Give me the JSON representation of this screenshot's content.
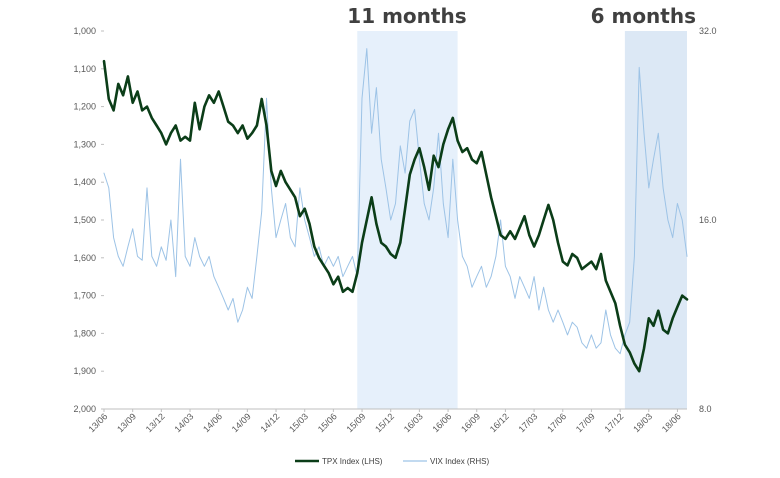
{
  "chart_data": {
    "type": "line",
    "x_tick_labels": [
      "13/06",
      "13/09",
      "13/12",
      "14/03",
      "14/06",
      "14/09",
      "14/12",
      "15/03",
      "15/06",
      "15/09",
      "15/12",
      "16/03",
      "16/06",
      "16/09",
      "16/12",
      "17/03",
      "17/06",
      "17/09",
      "17/12",
      "18/03",
      "18/06"
    ],
    "y_left": {
      "inverted": true,
      "ylim": [
        1000,
        2000
      ],
      "tick_labels": [
        "1,000",
        "1,100",
        "1,200",
        "1,300",
        "1,400",
        "1,500",
        "1,600",
        "1,700",
        "1,800",
        "1,900",
        "2,000"
      ]
    },
    "y_right": {
      "scale": "log",
      "ylim": [
        8,
        32
      ],
      "tick_labels": [
        "32.0",
        "16.0",
        "8.0"
      ]
    },
    "shaded_periods": [
      {
        "label": "11 months",
        "start_month": 26.5,
        "end_month": 37.0
      },
      {
        "label": "6 months",
        "start_month": 54.5,
        "end_month": 61.0
      }
    ],
    "series": [
      {
        "name": "TPX Index  (LHS)",
        "axis": "left",
        "color": "#0b3d18",
        "points": [
          [
            0.0,
            1080
          ],
          [
            0.5,
            1180
          ],
          [
            1.0,
            1210
          ],
          [
            1.5,
            1140
          ],
          [
            2.0,
            1170
          ],
          [
            2.5,
            1120
          ],
          [
            3.0,
            1190
          ],
          [
            3.5,
            1160
          ],
          [
            4.0,
            1210
          ],
          [
            4.5,
            1200
          ],
          [
            5.0,
            1230
          ],
          [
            5.5,
            1250
          ],
          [
            6.0,
            1270
          ],
          [
            6.5,
            1300
          ],
          [
            7.0,
            1270
          ],
          [
            7.5,
            1250
          ],
          [
            8.0,
            1290
          ],
          [
            8.5,
            1280
          ],
          [
            9.0,
            1290
          ],
          [
            9.5,
            1190
          ],
          [
            10.0,
            1260
          ],
          [
            10.5,
            1200
          ],
          [
            11.0,
            1170
          ],
          [
            11.5,
            1190
          ],
          [
            12.0,
            1160
          ],
          [
            12.5,
            1200
          ],
          [
            13.0,
            1240
          ],
          [
            13.5,
            1250
          ],
          [
            14.0,
            1270
          ],
          [
            14.5,
            1250
          ],
          [
            15.0,
            1285
          ],
          [
            15.5,
            1270
          ],
          [
            16.0,
            1250
          ],
          [
            16.5,
            1180
          ],
          [
            17.0,
            1250
          ],
          [
            17.5,
            1370
          ],
          [
            18.0,
            1410
          ],
          [
            18.5,
            1370
          ],
          [
            19.0,
            1400
          ],
          [
            19.5,
            1420
          ],
          [
            20.0,
            1440
          ],
          [
            20.5,
            1490
          ],
          [
            21.0,
            1470
          ],
          [
            21.5,
            1510
          ],
          [
            22.0,
            1570
          ],
          [
            22.5,
            1600
          ],
          [
            23.0,
            1620
          ],
          [
            23.5,
            1640
          ],
          [
            24.0,
            1670
          ],
          [
            24.5,
            1650
          ],
          [
            25.0,
            1690
          ],
          [
            25.5,
            1680
          ],
          [
            26.0,
            1690
          ],
          [
            26.5,
            1640
          ],
          [
            27.0,
            1560
          ],
          [
            27.5,
            1500
          ],
          [
            28.0,
            1440
          ],
          [
            28.5,
            1510
          ],
          [
            29.0,
            1560
          ],
          [
            29.5,
            1570
          ],
          [
            30.0,
            1590
          ],
          [
            30.5,
            1600
          ],
          [
            31.0,
            1560
          ],
          [
            31.5,
            1470
          ],
          [
            32.0,
            1380
          ],
          [
            32.5,
            1340
          ],
          [
            33.0,
            1310
          ],
          [
            33.5,
            1360
          ],
          [
            34.0,
            1420
          ],
          [
            34.5,
            1330
          ],
          [
            35.0,
            1360
          ],
          [
            35.5,
            1300
          ],
          [
            36.0,
            1260
          ],
          [
            36.5,
            1230
          ],
          [
            37.0,
            1290
          ],
          [
            37.5,
            1320
          ],
          [
            38.0,
            1310
          ],
          [
            38.5,
            1340
          ],
          [
            39.0,
            1350
          ],
          [
            39.5,
            1320
          ],
          [
            40.0,
            1380
          ],
          [
            40.5,
            1440
          ],
          [
            41.0,
            1490
          ],
          [
            41.5,
            1540
          ],
          [
            42.0,
            1550
          ],
          [
            42.5,
            1530
          ],
          [
            43.0,
            1550
          ],
          [
            43.5,
            1520
          ],
          [
            44.0,
            1490
          ],
          [
            44.5,
            1540
          ],
          [
            45.0,
            1570
          ],
          [
            45.5,
            1540
          ],
          [
            46.0,
            1500
          ],
          [
            46.5,
            1460
          ],
          [
            47.0,
            1500
          ],
          [
            47.5,
            1560
          ],
          [
            48.0,
            1610
          ],
          [
            48.5,
            1620
          ],
          [
            49.0,
            1590
          ],
          [
            49.5,
            1600
          ],
          [
            50.0,
            1630
          ],
          [
            50.5,
            1620
          ],
          [
            51.0,
            1610
          ],
          [
            51.5,
            1630
          ],
          [
            52.0,
            1590
          ],
          [
            52.5,
            1660
          ],
          [
            53.0,
            1690
          ],
          [
            53.5,
            1720
          ],
          [
            54.0,
            1780
          ],
          [
            54.5,
            1830
          ],
          [
            55.0,
            1850
          ],
          [
            55.5,
            1880
          ],
          [
            56.0,
            1900
          ],
          [
            56.5,
            1840
          ],
          [
            57.0,
            1760
          ],
          [
            57.5,
            1780
          ],
          [
            58.0,
            1740
          ],
          [
            58.5,
            1790
          ],
          [
            59.0,
            1800
          ],
          [
            59.5,
            1760
          ],
          [
            60.0,
            1730
          ],
          [
            60.5,
            1700
          ],
          [
            61.0,
            1710
          ]
        ]
      },
      {
        "name": "VIX Index  (RHS)",
        "axis": "right",
        "color": "#9dc3e6",
        "points": [
          [
            0.0,
            19.0
          ],
          [
            0.5,
            18.0
          ],
          [
            1.0,
            15.0
          ],
          [
            1.5,
            14.0
          ],
          [
            2.0,
            13.5
          ],
          [
            2.5,
            14.5
          ],
          [
            3.0,
            15.5
          ],
          [
            3.5,
            14.0
          ],
          [
            4.0,
            13.8
          ],
          [
            4.5,
            18.0
          ],
          [
            5.0,
            14.0
          ],
          [
            5.5,
            13.5
          ],
          [
            6.0,
            14.5
          ],
          [
            6.5,
            13.8
          ],
          [
            7.0,
            16.0
          ],
          [
            7.5,
            13.0
          ],
          [
            8.0,
            20.0
          ],
          [
            8.5,
            14.0
          ],
          [
            9.0,
            13.5
          ],
          [
            9.5,
            15.0
          ],
          [
            10.0,
            14.0
          ],
          [
            10.5,
            13.5
          ],
          [
            11.0,
            14.0
          ],
          [
            11.5,
            13.0
          ],
          [
            12.0,
            12.5
          ],
          [
            12.5,
            12.0
          ],
          [
            13.0,
            11.5
          ],
          [
            13.5,
            12.0
          ],
          [
            14.0,
            11.0
          ],
          [
            14.5,
            11.5
          ],
          [
            15.0,
            12.5
          ],
          [
            15.5,
            12.0
          ],
          [
            16.0,
            14.0
          ],
          [
            16.5,
            16.5
          ],
          [
            17.0,
            25.0
          ],
          [
            17.5,
            18.0
          ],
          [
            18.0,
            15.0
          ],
          [
            18.5,
            16.0
          ],
          [
            19.0,
            17.0
          ],
          [
            19.5,
            15.0
          ],
          [
            20.0,
            14.5
          ],
          [
            20.5,
            18.0
          ],
          [
            21.0,
            16.0
          ],
          [
            21.5,
            15.0
          ],
          [
            22.0,
            14.0
          ],
          [
            22.5,
            14.5
          ],
          [
            23.0,
            13.5
          ],
          [
            23.5,
            14.0
          ],
          [
            24.0,
            13.5
          ],
          [
            24.5,
            14.0
          ],
          [
            25.0,
            13.0
          ],
          [
            25.5,
            13.5
          ],
          [
            26.0,
            14.0
          ],
          [
            26.5,
            13.0
          ],
          [
            27.0,
            25.0
          ],
          [
            27.5,
            30.0
          ],
          [
            28.0,
            22.0
          ],
          [
            28.5,
            26.0
          ],
          [
            29.0,
            20.0
          ],
          [
            29.5,
            18.0
          ],
          [
            30.0,
            16.0
          ],
          [
            30.5,
            17.0
          ],
          [
            31.0,
            21.0
          ],
          [
            31.5,
            19.0
          ],
          [
            32.0,
            23.0
          ],
          [
            32.5,
            24.0
          ],
          [
            33.0,
            20.0
          ],
          [
            33.5,
            17.0
          ],
          [
            34.0,
            16.0
          ],
          [
            34.5,
            18.0
          ],
          [
            35.0,
            22.0
          ],
          [
            35.5,
            17.0
          ],
          [
            36.0,
            15.0
          ],
          [
            36.5,
            20.0
          ],
          [
            37.0,
            16.0
          ],
          [
            37.5,
            14.0
          ],
          [
            38.0,
            13.5
          ],
          [
            38.5,
            12.5
          ],
          [
            39.0,
            13.0
          ],
          [
            39.5,
            13.5
          ],
          [
            40.0,
            12.5
          ],
          [
            40.5,
            13.0
          ],
          [
            41.0,
            14.0
          ],
          [
            41.5,
            16.0
          ],
          [
            42.0,
            13.5
          ],
          [
            42.5,
            13.0
          ],
          [
            43.0,
            12.0
          ],
          [
            43.5,
            13.0
          ],
          [
            44.0,
            12.5
          ],
          [
            44.5,
            12.0
          ],
          [
            45.0,
            13.0
          ],
          [
            45.5,
            11.5
          ],
          [
            46.0,
            12.5
          ],
          [
            46.5,
            11.5
          ],
          [
            47.0,
            11.0
          ],
          [
            47.5,
            11.5
          ],
          [
            48.0,
            11.0
          ],
          [
            48.5,
            10.5
          ],
          [
            49.0,
            11.0
          ],
          [
            49.5,
            10.8
          ],
          [
            50.0,
            10.2
          ],
          [
            50.5,
            10.0
          ],
          [
            51.0,
            10.5
          ],
          [
            51.5,
            10.0
          ],
          [
            52.0,
            10.2
          ],
          [
            52.5,
            11.5
          ],
          [
            53.0,
            10.5
          ],
          [
            53.5,
            10.0
          ],
          [
            54.0,
            9.8
          ],
          [
            54.5,
            10.5
          ],
          [
            55.0,
            11.0
          ],
          [
            55.5,
            14.0
          ],
          [
            56.0,
            28.0
          ],
          [
            56.5,
            22.0
          ],
          [
            57.0,
            18.0
          ],
          [
            57.5,
            20.0
          ],
          [
            58.0,
            22.0
          ],
          [
            58.5,
            18.0
          ],
          [
            59.0,
            16.0
          ],
          [
            59.5,
            15.0
          ],
          [
            60.0,
            17.0
          ],
          [
            60.5,
            16.0
          ],
          [
            61.0,
            14.0
          ]
        ]
      }
    ],
    "legend_position": "bottom"
  }
}
